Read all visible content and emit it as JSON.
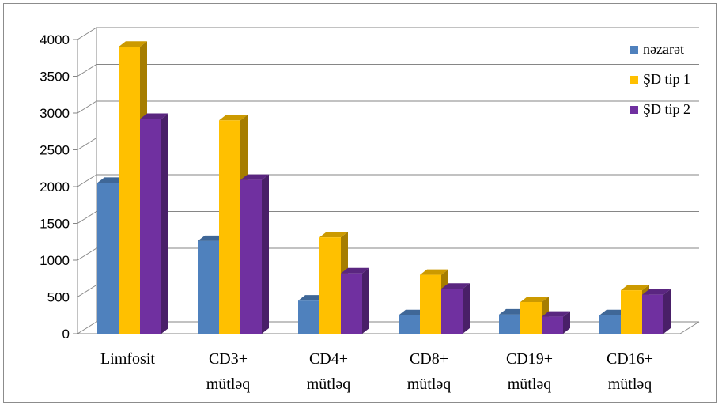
{
  "chart_data": {
    "type": "bar",
    "title": "",
    "xlabel": "",
    "ylabel": "",
    "ylim": [
      0,
      4000
    ],
    "yticks": [
      0,
      500,
      1000,
      1500,
      2000,
      2500,
      3000,
      3500,
      4000
    ],
    "grid": true,
    "legend_position": "right",
    "categories": [
      [
        "Limfosit"
      ],
      [
        "CD3+",
        "mütləq"
      ],
      [
        "CD4+",
        "mütləq"
      ],
      [
        "CD8+",
        "mütləq"
      ],
      [
        "CD19+",
        "mütləq"
      ],
      [
        "CD16+",
        "mütləq"
      ]
    ],
    "series": [
      {
        "name": "nəzarət",
        "color": "#4f81bd",
        "values": [
          2050,
          1260,
          450,
          250,
          260,
          250
        ]
      },
      {
        "name": "ŞD tip 1",
        "color": "#ffc000",
        "values": [
          3900,
          2900,
          1310,
          800,
          430,
          590
        ]
      },
      {
        "name": "ŞD tip 2",
        "color": "#7030a0",
        "values": [
          2920,
          2090,
          820,
          610,
          230,
          530
        ]
      }
    ]
  }
}
